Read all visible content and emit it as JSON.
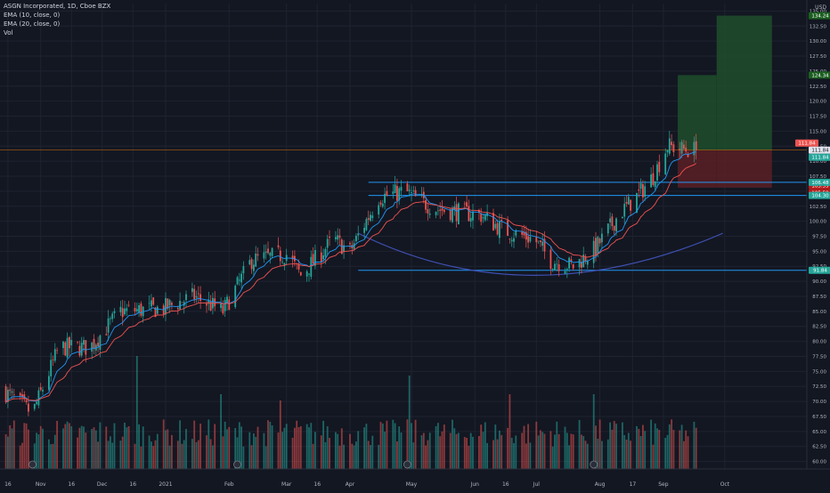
{
  "chart_data": {
    "type": "candlestick",
    "title": "ASGN Incorporated, 1D, Cboe BZX",
    "indicators": [
      "EMA (10, close, 0)",
      "EMA (20, close, 0)",
      "Vol"
    ],
    "currency_label": "USD",
    "ylim": [
      58.75,
      136.25
    ],
    "y_ticks": [
      135.0,
      132.5,
      130.0,
      127.5,
      125.0,
      122.5,
      120.0,
      117.5,
      115.0,
      112.5,
      110.0,
      107.5,
      105.0,
      102.5,
      100.0,
      97.5,
      95.0,
      92.5,
      90.0,
      87.5,
      85.0,
      82.5,
      80.0,
      77.5,
      75.0,
      72.5,
      70.0,
      67.5,
      65.0,
      62.5,
      60.0
    ],
    "y_tick_labels": [
      "135.00",
      "132.50",
      "130.00",
      "127.50",
      "125.00",
      "122.50",
      "120.00",
      "117.50",
      "115.00",
      "112.50",
      "110.00",
      "107.50",
      "105.00",
      "102.50",
      "100.00",
      "97.50",
      "95.00",
      "92.50",
      "90.00",
      "87.50",
      "85.00",
      "82.50",
      "80.00",
      "77.50",
      "75.00",
      "72.50",
      "70.00",
      "67.50",
      "65.00",
      "62.50",
      "60.00"
    ],
    "x_start_date": "2020-10-13",
    "x_ticks": [
      {
        "label": "16",
        "date": "2020-10-16"
      },
      {
        "label": "Nov",
        "date": "2020-11-01"
      },
      {
        "label": "16",
        "date": "2020-11-16"
      },
      {
        "label": "Dec",
        "date": "2020-12-01"
      },
      {
        "label": "16",
        "date": "2020-12-16"
      },
      {
        "label": "2021",
        "date": "2021-01-01"
      },
      {
        "label": "Feb",
        "date": "2021-02-01"
      },
      {
        "label": "Mar",
        "date": "2021-03-01"
      },
      {
        "label": "16",
        "date": "2021-03-16"
      },
      {
        "label": "Apr",
        "date": "2021-04-01"
      },
      {
        "label": "May",
        "date": "2021-05-01"
      },
      {
        "label": "Jun",
        "date": "2021-06-01"
      },
      {
        "label": "16",
        "date": "2021-06-16"
      },
      {
        "label": "Jul",
        "date": "2021-07-01"
      },
      {
        "label": "Aug",
        "date": "2021-08-01"
      },
      {
        "label": "17",
        "date": "2021-08-17"
      },
      {
        "label": "Sep",
        "date": "2021-09-01"
      },
      {
        "label": "Oct",
        "date": "2021-10-01"
      }
    ],
    "close_anchors": [
      {
        "date": "2020-10-13",
        "close": 72.0
      },
      {
        "date": "2020-10-28",
        "close": 68.0
      },
      {
        "date": "2020-11-10",
        "close": 79.0
      },
      {
        "date": "2020-11-25",
        "close": 79.0
      },
      {
        "date": "2020-12-10",
        "close": 85.0
      },
      {
        "date": "2020-12-31",
        "close": 85.5
      },
      {
        "date": "2021-01-15",
        "close": 87.5
      },
      {
        "date": "2021-01-29",
        "close": 85.0
      },
      {
        "date": "2021-02-12",
        "close": 93.5
      },
      {
        "date": "2021-03-01",
        "close": 94.5
      },
      {
        "date": "2021-03-08",
        "close": 91.0
      },
      {
        "date": "2021-03-24",
        "close": 97.0
      },
      {
        "date": "2021-04-01",
        "close": 95.0
      },
      {
        "date": "2021-04-15",
        "close": 104.0
      },
      {
        "date": "2021-04-28",
        "close": 105.0
      },
      {
        "date": "2021-05-04",
        "close": 103.5
      },
      {
        "date": "2021-05-14",
        "close": 102.0
      },
      {
        "date": "2021-06-04",
        "close": 101.0
      },
      {
        "date": "2021-06-15",
        "close": 98.5
      },
      {
        "date": "2021-06-30",
        "close": 97.0
      },
      {
        "date": "2021-07-08",
        "close": 93.5
      },
      {
        "date": "2021-07-19",
        "close": 92.5
      },
      {
        "date": "2021-07-30",
        "close": 95.5
      },
      {
        "date": "2021-08-10",
        "close": 101.0
      },
      {
        "date": "2021-08-20",
        "close": 104.5
      },
      {
        "date": "2021-08-27",
        "close": 107.5
      },
      {
        "date": "2021-09-03",
        "close": 112.5
      },
      {
        "date": "2021-09-10",
        "close": 112.0
      },
      {
        "date": "2021-09-17",
        "close": 111.84
      }
    ],
    "volume_spikes": [
      {
        "date": "2020-10-27",
        "rel": 0.55
      },
      {
        "date": "2020-12-18",
        "rel": 1.0
      },
      {
        "date": "2021-01-28",
        "rel": 0.6
      },
      {
        "date": "2021-02-26",
        "rel": 0.55
      },
      {
        "date": "2021-04-30",
        "rel": 0.75
      },
      {
        "date": "2021-06-18",
        "rel": 0.6
      },
      {
        "date": "2021-07-29",
        "rel": 0.6
      }
    ],
    "horizontal_lines": [
      {
        "price": 106.48,
        "label": "106.48",
        "color": "#2196f3"
      },
      {
        "price": 104.3,
        "label": "104.30",
        "color": "#2196f3"
      },
      {
        "price": 91.84,
        "label": "91.84",
        "color": "#2196f3"
      }
    ],
    "rounding_bottom_arc": {
      "start": {
        "date": "2021-04-05",
        "price": 98.0
      },
      "bottom": {
        "date": "2021-06-30",
        "price": 91.0
      },
      "end": {
        "date": "2021-09-30",
        "price": 98.0
      },
      "color": "#3f51b5"
    },
    "long_position": {
      "start_date": "2021-09-08",
      "end_date": "2021-09-27",
      "entry": 111.84,
      "target": 124.34,
      "stop": 105.59
    },
    "long_position_2": {
      "start_date": "2021-09-27",
      "end_date": "2021-10-24",
      "entry": 111.84,
      "target": 134.24,
      "stop": 105.59
    },
    "price_labels": [
      {
        "text": "134.24",
        "price": 134.24,
        "bg": "#1b5e20",
        "fg": "#ffffff"
      },
      {
        "text": "124.34",
        "price": 124.34,
        "bg": "#1b5e20",
        "fg": "#ffffff"
      },
      {
        "text": "111.84",
        "price": 111.84,
        "bg": "#ef5350",
        "fg": "#ffffff"
      },
      {
        "text": "111.84",
        "price": 111.84,
        "bg": "#e0e3eb",
        "fg": "#131722"
      },
      {
        "text": "111.84",
        "price": 111.84,
        "bg": "#26a69a",
        "fg": "#ffffff"
      },
      {
        "text": "105.59",
        "price": 105.59,
        "bg": "#b71c1c",
        "fg": "#ffffff"
      },
      {
        "text": "105.59",
        "price": 105.59,
        "bg": "#b71c1c",
        "fg": "#ffffff"
      },
      {
        "text": "106.48",
        "price": 106.48,
        "bg": "#26a69a",
        "fg": "#ffffff"
      },
      {
        "text": "104.30",
        "price": 104.3,
        "bg": "#26a69a",
        "fg": "#ffffff"
      },
      {
        "text": "91.84",
        "price": 91.84,
        "bg": "#26a69a",
        "fg": "#ffffff"
      }
    ],
    "earnings_markers": [
      "2020-10-28",
      "2021-02-05",
      "2021-04-29",
      "2021-07-29"
    ],
    "colors": {
      "up": "#26a69a",
      "down": "#ef5350",
      "ema10": "#2196f3",
      "ema20": "#ef5350",
      "profit": "#1e4d2b",
      "loss": "#5b1e24",
      "grid": "#1f2330",
      "axis_text": "#b2b5be",
      "hline": "#2196f3",
      "arc": "#3f51b5"
    },
    "grid": true,
    "legend_position": "top-left"
  }
}
